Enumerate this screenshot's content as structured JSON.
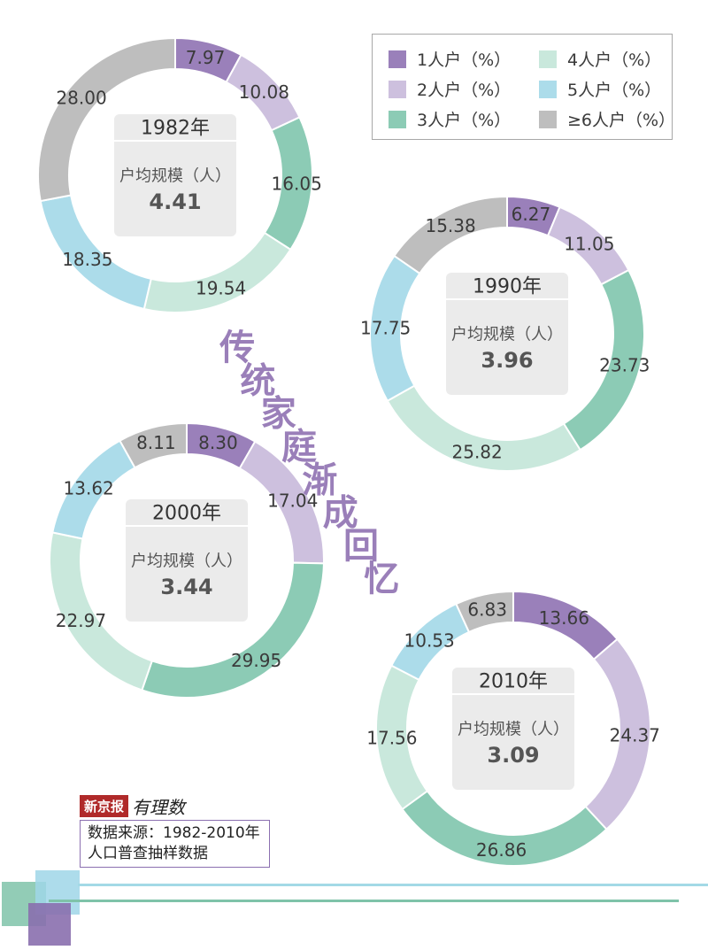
{
  "colors": {
    "1": "#9a80ba",
    "2": "#cdc0de",
    "3": "#8ccbb5",
    "4": "#c9e8dc",
    "5": "#acdcea",
    "6": "#bebebe",
    "center_box": "#ebebeb",
    "title": "#9a7fb9"
  },
  "legend": [
    {
      "label": "1人户（%）",
      "key": "1"
    },
    {
      "label": "2人户（%）",
      "key": "2"
    },
    {
      "label": "3人户（%）",
      "key": "3"
    },
    {
      "label": "4人户（%）",
      "key": "4"
    },
    {
      "label": "5人户（%）",
      "key": "5"
    },
    {
      "label": "≥6人户（%）",
      "key": "6"
    }
  ],
  "title": "传统家庭渐成回忆",
  "avg_label": "户均规模（人）",
  "brand": {
    "paper": "新京报",
    "sub": "有理数"
  },
  "source": {
    "line1": "数据来源：1982-2010年",
    "line2": "人口普查抽样数据"
  },
  "chart_data": [
    {
      "type": "pie",
      "year": "1982年",
      "avg": "4.41",
      "categories": [
        "1人户（%）",
        "2人户（%）",
        "3人户（%）",
        "4人户（%）",
        "5人户（%）",
        "≥6人户（%）"
      ],
      "values": [
        7.97,
        10.08,
        16.05,
        19.54,
        18.35,
        28.0
      ],
      "labels": [
        "7.97",
        "10.08",
        "16.05",
        "19.54",
        "18.35",
        "28.00"
      ]
    },
    {
      "type": "pie",
      "year": "1990年",
      "avg": "3.96",
      "categories": [
        "1人户（%）",
        "2人户（%）",
        "3人户（%）",
        "4人户（%）",
        "5人户（%）",
        "≥6人户（%）"
      ],
      "values": [
        6.27,
        11.05,
        23.73,
        25.82,
        17.75,
        15.38
      ],
      "labels": [
        "6.27",
        "11.05",
        "23.73",
        "25.82",
        "17.75",
        "15.38"
      ]
    },
    {
      "type": "pie",
      "year": "2000年",
      "avg": "3.44",
      "categories": [
        "1人户（%）",
        "2人户（%）",
        "3人户（%）",
        "4人户（%）",
        "5人户（%）",
        "≥6人户（%）"
      ],
      "values": [
        8.3,
        17.04,
        29.95,
        22.97,
        13.62,
        8.11
      ],
      "labels": [
        "8.30",
        "17.04",
        "29.95",
        "22.97",
        "13.62",
        "8.11"
      ]
    },
    {
      "type": "pie",
      "year": "2010年",
      "avg": "3.09",
      "categories": [
        "1人户（%）",
        "2人户（%）",
        "3人户（%）",
        "4人户（%）",
        "5人户（%）",
        "≥6人户（%）"
      ],
      "values": [
        13.66,
        24.37,
        26.86,
        17.56,
        10.53,
        6.83
      ],
      "labels": [
        "13.66",
        "24.37",
        "26.86",
        "17.56",
        "10.53",
        "6.83"
      ]
    }
  ]
}
